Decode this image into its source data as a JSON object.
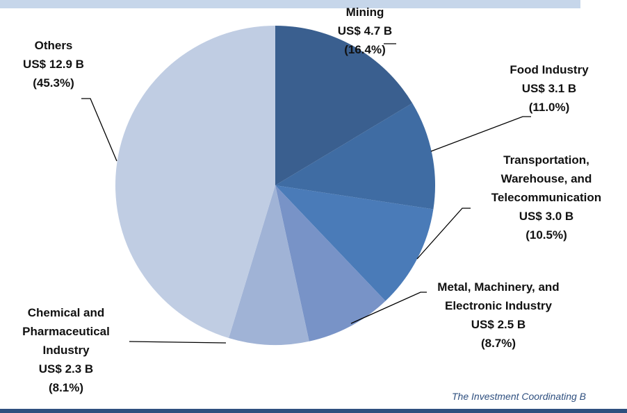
{
  "chart_data": {
    "type": "pie",
    "categories": [
      "Mining",
      "Food Industry",
      "Transportation, Warehouse, and Telecommunication",
      "Metal, Machinery, and Electronic Industry",
      "Chemical and Pharmaceutical Industry",
      "Others"
    ],
    "amount_labels": [
      "US$ 4.7 B",
      "US$ 3.1 B",
      "US$ 3.0 B",
      "US$ 2.5 B",
      "US$ 2.3 B",
      "US$ 12.9 B"
    ],
    "values": [
      16.4,
      11.0,
      10.5,
      8.7,
      8.1,
      45.3
    ],
    "value_labels": [
      "(16.4%)",
      "(11.0%)",
      "(10.5%)",
      "(8.7%)",
      "(8.1%)",
      "(45.3%)"
    ],
    "colors": [
      "#3a5f8f",
      "#3f6ca3",
      "#4a7bb8",
      "#7893c7",
      "#a0b3d6",
      "#c0cde3"
    ],
    "source": "The Investment Coordinating B"
  }
}
